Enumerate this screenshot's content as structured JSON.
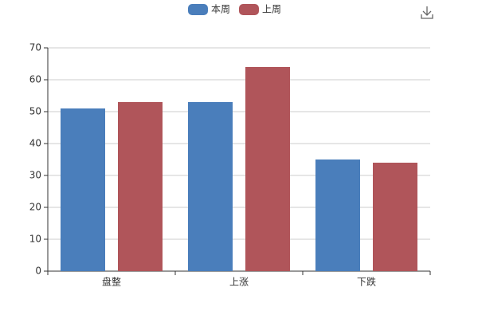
{
  "chart_data": {
    "type": "bar",
    "categories": [
      "盘整",
      "上涨",
      "下跌"
    ],
    "series": [
      {
        "name": "本周",
        "color": "#4a7ebb",
        "values": [
          51,
          53,
          35
        ]
      },
      {
        "name": "上周",
        "color": "#b0555a",
        "values": [
          53,
          64,
          34
        ]
      }
    ],
    "ylim": [
      0,
      70
    ],
    "yticks": [
      0,
      10,
      20,
      30,
      40,
      50,
      60,
      70
    ],
    "grid": true,
    "legend": "top"
  }
}
